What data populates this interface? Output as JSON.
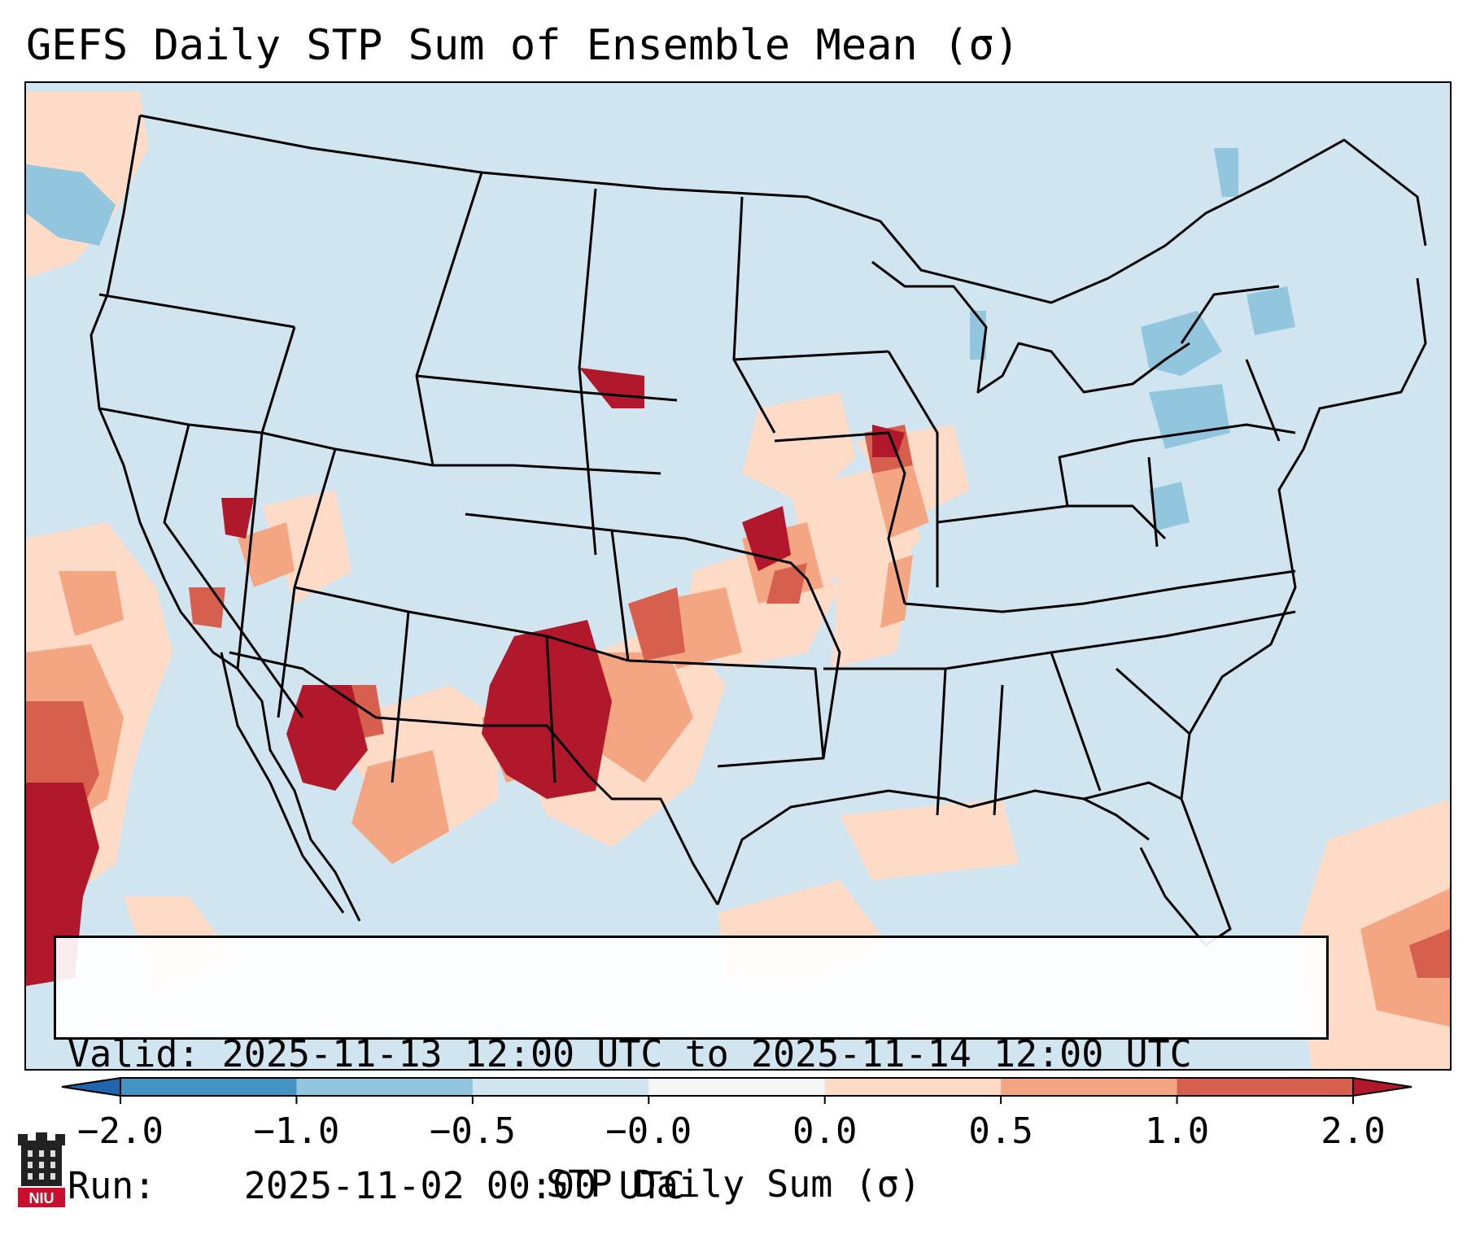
{
  "title": "GEFS Daily STP Sum of Ensemble Mean (σ)",
  "valid_box": {
    "valid_label": "Valid:",
    "valid_value": "2025-11-13 12:00 UTC to 2025-11-14 12:00 UTC",
    "run_label": "Run:",
    "run_value": "2025-11-02 00:00 UTC"
  },
  "colorbar": {
    "label": "STP Daily Sum (σ)",
    "ticks": [
      "−2.0",
      "−1.0",
      "−0.5",
      "−0.0",
      "0.0",
      "0.5",
      "1.0",
      "2.0"
    ],
    "bins": [
      {
        "range": "< -2.0",
        "color": "#2166ac"
      },
      {
        "range": "-2.0 to -1.0",
        "color": "#4393c3"
      },
      {
        "range": "-1.0 to -0.5",
        "color": "#92c5de"
      },
      {
        "range": "-0.5 to -0.0",
        "color": "#d1e5f0"
      },
      {
        "range": "-0.0 to 0.0",
        "color": "#f7f7f7"
      },
      {
        "range": "0.0 to 0.5",
        "color": "#fddbc7"
      },
      {
        "range": "0.5 to 1.0",
        "color": "#f4a582"
      },
      {
        "range": "1.0 to 2.0",
        "color": "#d6604d"
      },
      {
        "range": "> 2.0",
        "color": "#b2182b"
      }
    ]
  },
  "map": {
    "projection": "Lambert Conformal (CONUS)",
    "background_color": "#d1e5f0",
    "highlights": [
      "Strongest positive anomalies over southeastern New Mexico / West Texas",
      "Strong positive anomalies over southeastern Arizona",
      "Positive anomalies over central Nebraska and Kansas",
      "Positive anomalies over eastern Iowa / northwestern Illinois",
      "Positive anomalies over the Pacific off southern California and Baja",
      "Weak negative anomalies over New York / Pennsylvania"
    ]
  },
  "logo": {
    "text": "NIU",
    "icon": "university-tower-icon"
  }
}
